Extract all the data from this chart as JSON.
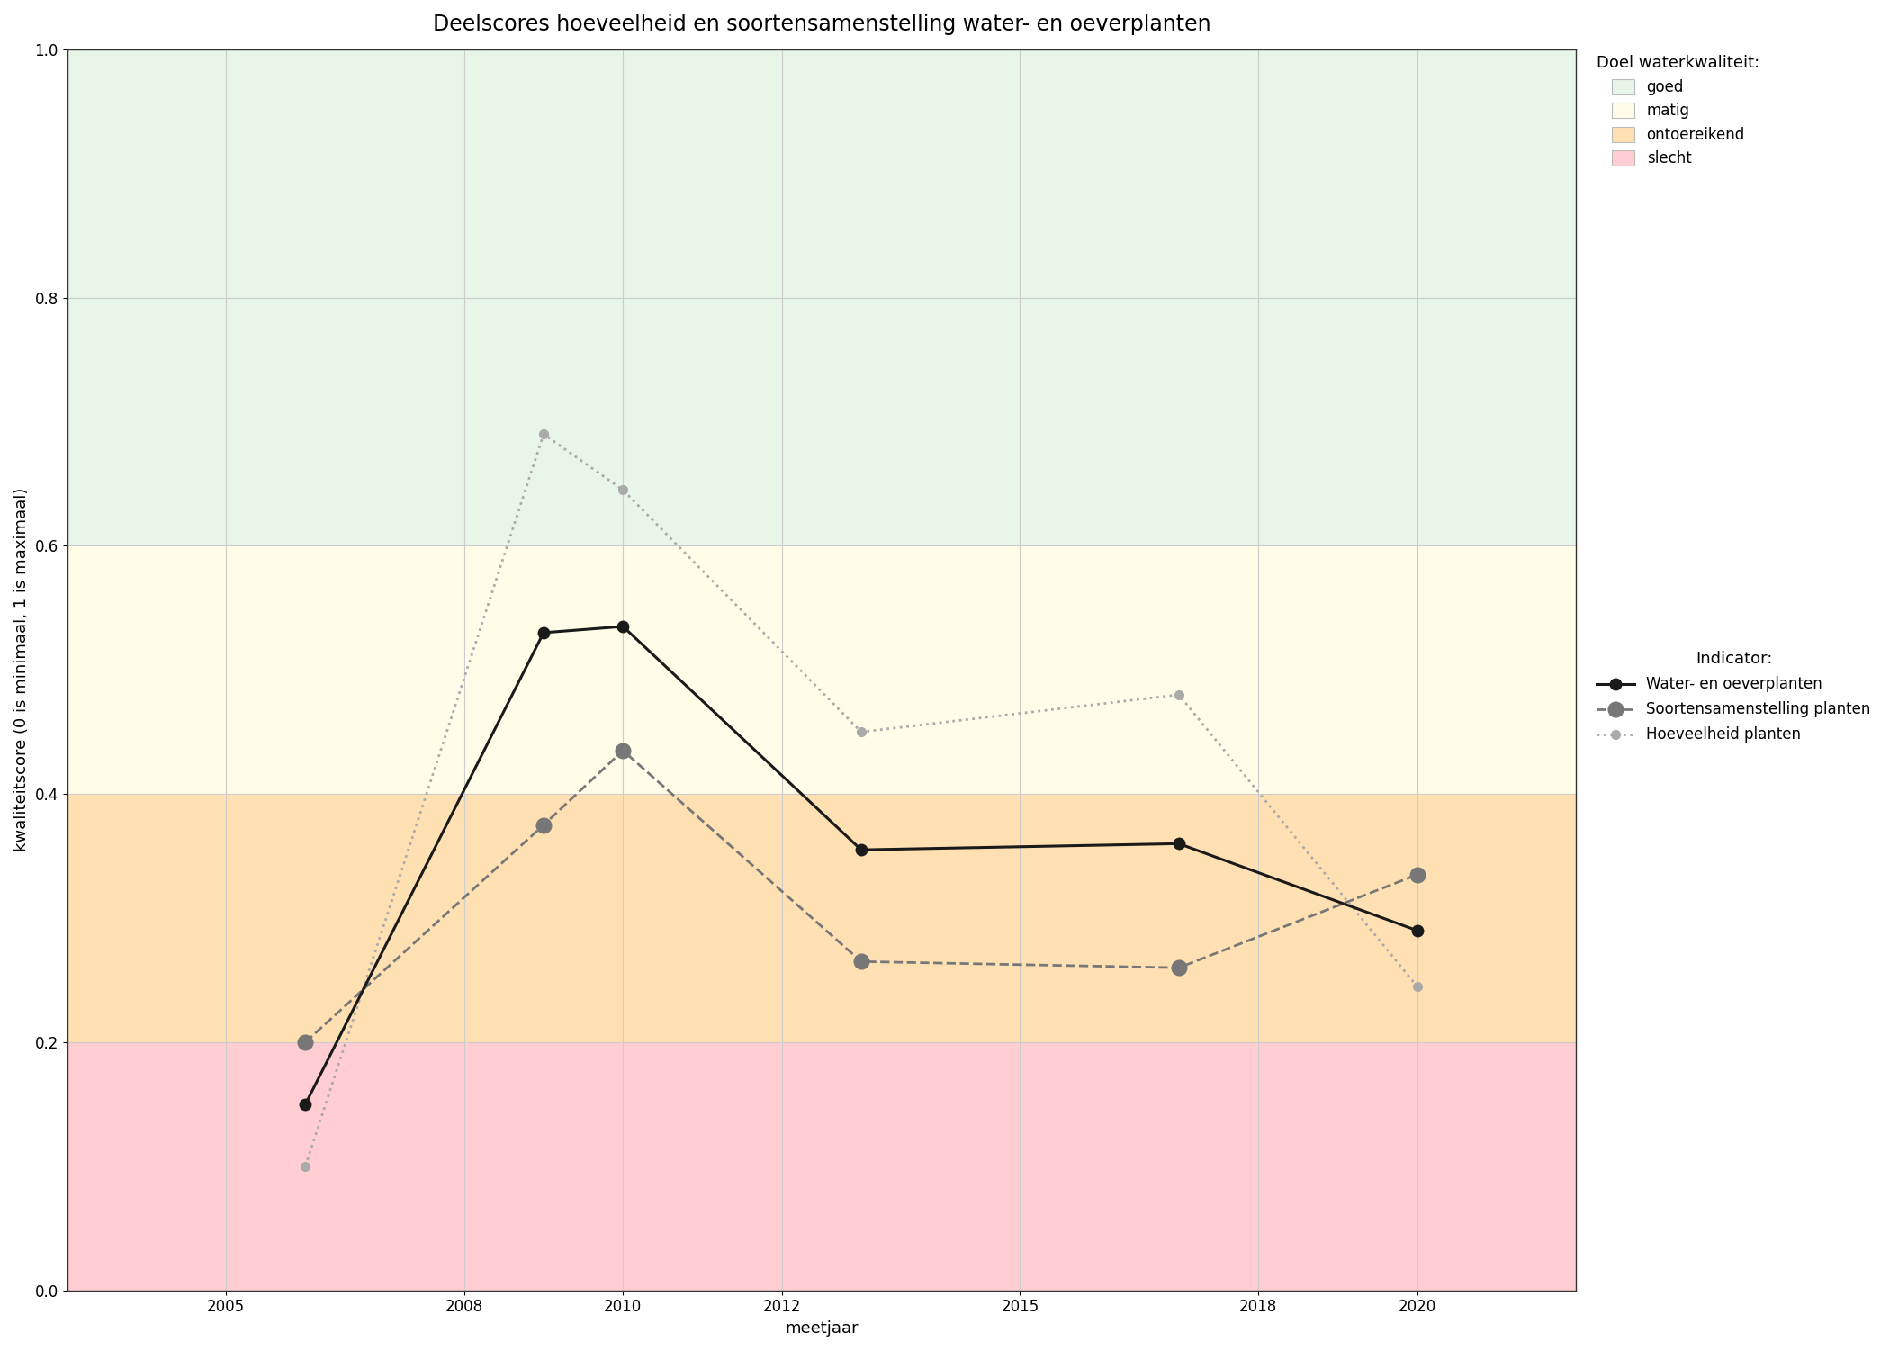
{
  "title": "Deelscores hoeveelheid en soortensamenstelling water- en oeverplanten",
  "xlabel": "meetjaar",
  "ylabel": "kwaliteitscore (0 is minimaal, 1 is maximaal)",
  "xlim": [
    2003,
    2022
  ],
  "ylim": [
    0.0,
    1.0
  ],
  "xticks": [
    2005,
    2008,
    2010,
    2012,
    2015,
    2018,
    2020
  ],
  "yticks": [
    0.0,
    0.2,
    0.4,
    0.6,
    0.8,
    1.0
  ],
  "background_bands": [
    {
      "ymin": 0.6,
      "ymax": 1.0,
      "color": "#E8F5E9",
      "label": "goed"
    },
    {
      "ymin": 0.4,
      "ymax": 0.6,
      "color": "#FFFDE7",
      "label": "matig"
    },
    {
      "ymin": 0.2,
      "ymax": 0.4,
      "color": "#FFE0B2",
      "label": "ontoereikend"
    },
    {
      "ymin": 0.0,
      "ymax": 0.2,
      "color": "#FFCDD2",
      "label": "slecht"
    }
  ],
  "series": [
    {
      "name": "Water- en oeverplanten",
      "x": [
        2006,
        2009,
        2010,
        2013,
        2017,
        2020
      ],
      "y": [
        0.15,
        0.53,
        0.535,
        0.355,
        0.36,
        0.29
      ],
      "color": "#1a1a1a",
      "linestyle": "solid",
      "linewidth": 2.2,
      "markersize": 9,
      "marker": "o",
      "zorder": 5
    },
    {
      "name": "Soortensamenstelling planten",
      "x": [
        2006,
        2009,
        2010,
        2013,
        2017,
        2020
      ],
      "y": [
        0.2,
        0.375,
        0.435,
        0.265,
        0.26,
        0.335
      ],
      "color": "#777777",
      "linestyle": "dashed",
      "linewidth": 2.0,
      "markersize": 12,
      "marker": "o",
      "zorder": 4
    },
    {
      "name": "Hoeveelheid planten",
      "x": [
        2006,
        2009,
        2010,
        2013,
        2017,
        2020
      ],
      "y": [
        0.1,
        0.69,
        0.645,
        0.45,
        0.48,
        0.245
      ],
      "color": "#aaaaaa",
      "linestyle": "dotted",
      "linewidth": 2.0,
      "markersize": 7,
      "marker": "o",
      "zorder": 4
    }
  ],
  "legend_title_quality": "Doel waterkwaliteit:",
  "legend_title_indicator": "Indicator:",
  "background_color": "#ffffff",
  "grid_color": "#cccccc",
  "title_fontsize": 17,
  "label_fontsize": 13,
  "tick_fontsize": 12,
  "legend_fontsize": 12
}
